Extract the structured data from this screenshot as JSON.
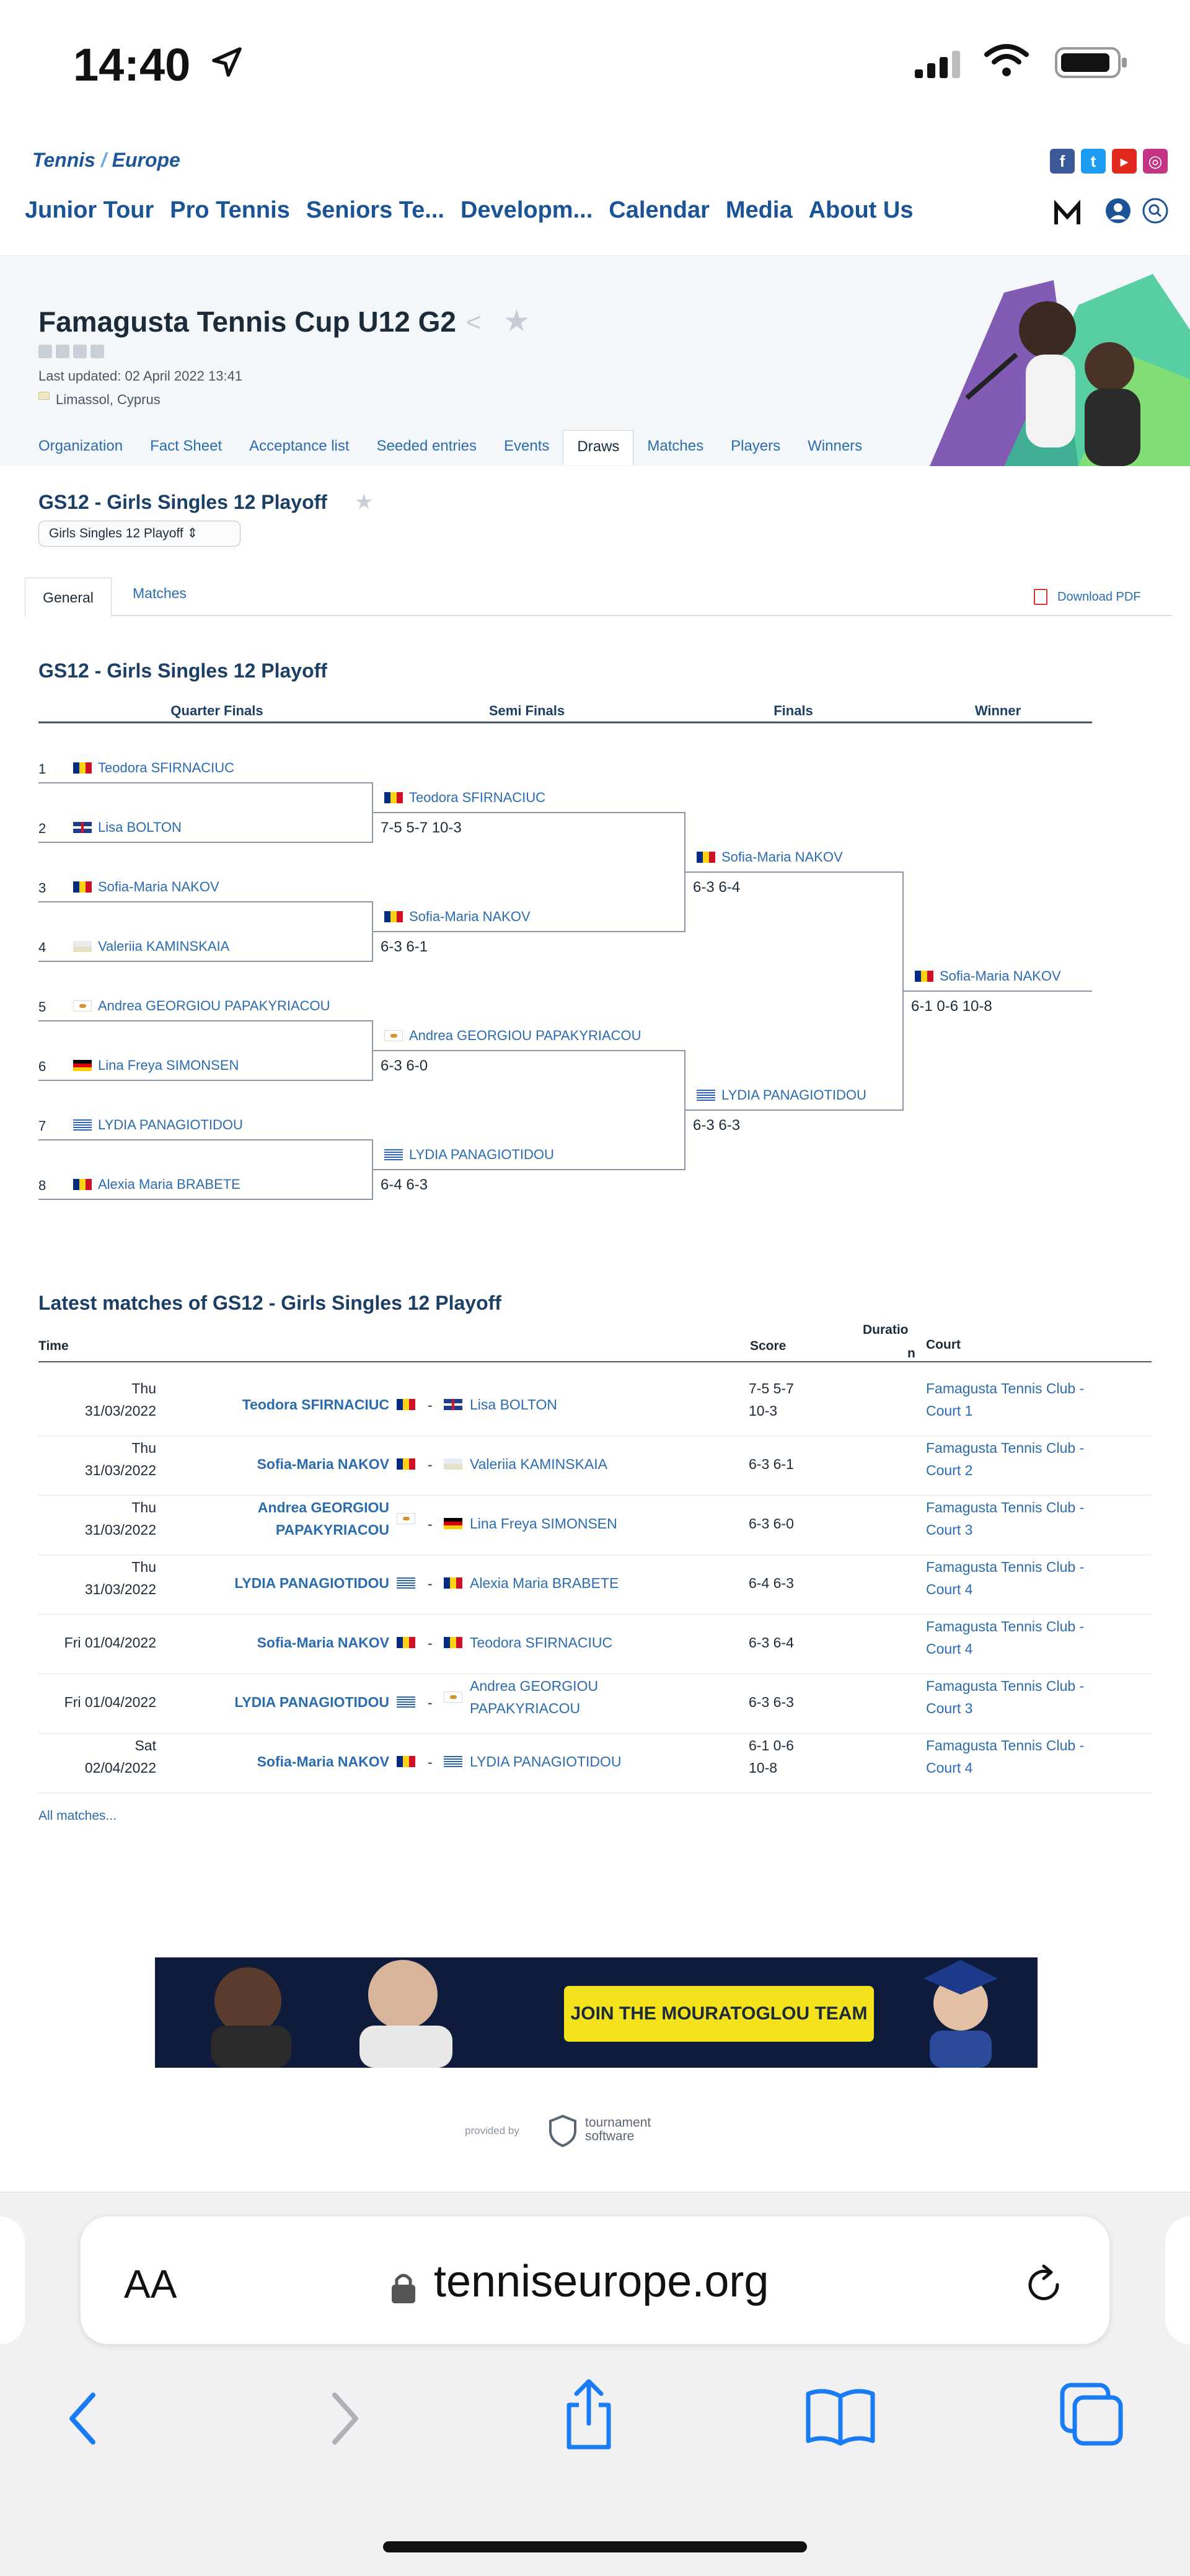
{
  "status_bar": {
    "time": "14:40"
  },
  "site": {
    "logo_part1": "Tennis",
    "logo_part2": "Europe",
    "nav": [
      "Junior Tour",
      "Pro Tennis",
      "Seniors Te...",
      "Developm...",
      "Calendar",
      "Media",
      "About Us"
    ],
    "social_icons": [
      "facebook-icon",
      "twitter-icon",
      "youtube-icon",
      "instagram-icon"
    ]
  },
  "tournament": {
    "title": "Famagusta Tennis Cup U12 G2",
    "updated": "Last updated: 02 April 2022 13:41",
    "location": "Limassol, Cyprus",
    "tabs": [
      "Organization",
      "Fact Sheet",
      "Acceptance list",
      "Seeded entries",
      "Events",
      "Draws",
      "Matches",
      "Players",
      "Winners"
    ],
    "active_tab": "Draws"
  },
  "draw": {
    "title": "GS12 - Girls Singles 12 Playoff",
    "select_value": "Girls Singles 12 Playoff",
    "subtabs": [
      "General",
      "Matches"
    ],
    "download": "Download PDF",
    "section_title": "GS12 - Girls Singles 12 Playoff",
    "rounds": [
      "Quarter Finals",
      "Semi Finals",
      "Finals",
      "Winner"
    ],
    "qf": [
      {
        "seed": "1",
        "name": "Teodora SFIRNACIUC",
        "flag": "ro"
      },
      {
        "seed": "2",
        "name": "Lisa BOLTON",
        "flag": "gb"
      },
      {
        "seed": "3",
        "name": "Sofia-Maria NAKOV",
        "flag": "ro"
      },
      {
        "seed": "4",
        "name": "Valeriia KAMINSKAIA",
        "flag": "ua"
      },
      {
        "seed": "5",
        "name": "Andrea GEORGIOU PAPAKYRIACOU",
        "flag": "cy"
      },
      {
        "seed": "6",
        "name": "Lina Freya SIMONSEN",
        "flag": "de"
      },
      {
        "seed": "7",
        "name": "LYDIA PANAGIOTIDOU",
        "flag": "gr"
      },
      {
        "seed": "8",
        "name": "Alexia Maria BRABETE",
        "flag": "ro"
      }
    ],
    "sf": [
      {
        "name": "Teodora SFIRNACIUC",
        "flag": "ro",
        "score": "7-5 5-7 10-3"
      },
      {
        "name": "Sofia-Maria NAKOV",
        "flag": "ro",
        "score": "6-3 6-1"
      },
      {
        "name": "Andrea GEORGIOU PAPAKYRIACOU",
        "flag": "cy",
        "score": "6-3 6-0"
      },
      {
        "name": "LYDIA PANAGIOTIDOU",
        "flag": "gr",
        "score": "6-4 6-3"
      }
    ],
    "f": [
      {
        "name": "Sofia-Maria NAKOV",
        "flag": "ro",
        "score": "6-3 6-4"
      },
      {
        "name": "LYDIA PANAGIOTIDOU",
        "flag": "gr",
        "score": "6-3 6-3"
      }
    ],
    "winner": {
      "name": "Sofia-Maria NAKOV",
      "flag": "ro",
      "score": "6-1 0-6 10-8"
    }
  },
  "latest": {
    "title": "Latest matches of GS12 - Girls Singles 12 Playoff",
    "headers": {
      "time": "Time",
      "score": "Score",
      "duration_a": "Duratio",
      "duration_b": "n",
      "court": "Court"
    },
    "rows": [
      {
        "time_a": "Thu",
        "time_b": "31/03/2022",
        "p1_a": "Teodora SFIRNACIUC",
        "p1_b": "",
        "p1_flag": "ro",
        "p2_a": "Lisa BOLTON",
        "p2_b": "",
        "p2_flag": "gb",
        "score_a": "7-5 5-7",
        "score_b": "10-3",
        "court_a": "Famagusta Tennis Club -",
        "court_b": "Court 1"
      },
      {
        "time_a": "Thu",
        "time_b": "31/03/2022",
        "p1_a": "Sofia-Maria NAKOV",
        "p1_b": "",
        "p1_flag": "ro",
        "p2_a": "Valeriia KAMINSKAIA",
        "p2_b": "",
        "p2_flag": "ua",
        "score_a": "6-3 6-1",
        "score_b": "",
        "court_a": "Famagusta Tennis Club -",
        "court_b": "Court 2"
      },
      {
        "time_a": "Thu",
        "time_b": "31/03/2022",
        "p1_a": "Andrea GEORGIOU",
        "p1_b": "PAPAKYRIACOU",
        "p1_flag": "cy",
        "p2_a": "Lina Freya SIMONSEN",
        "p2_b": "",
        "p2_flag": "de",
        "score_a": "6-3 6-0",
        "score_b": "",
        "court_a": "Famagusta Tennis Club -",
        "court_b": "Court 3"
      },
      {
        "time_a": "Thu",
        "time_b": "31/03/2022",
        "p1_a": "LYDIA PANAGIOTIDOU",
        "p1_b": "",
        "p1_flag": "gr",
        "p2_a": "Alexia Maria BRABETE",
        "p2_b": "",
        "p2_flag": "ro",
        "score_a": "6-4 6-3",
        "score_b": "",
        "court_a": "Famagusta Tennis Club -",
        "court_b": "Court 4"
      },
      {
        "time_a": "Fri 01/04/2022",
        "time_b": "",
        "p1_a": "Sofia-Maria NAKOV",
        "p1_b": "",
        "p1_flag": "ro",
        "p2_a": "Teodora SFIRNACIUC",
        "p2_b": "",
        "p2_flag": "ro",
        "score_a": "6-3 6-4",
        "score_b": "",
        "court_a": "Famagusta Tennis Club -",
        "court_b": "Court 4"
      },
      {
        "time_a": "Fri 01/04/2022",
        "time_b": "",
        "p1_a": "LYDIA PANAGIOTIDOU",
        "p1_b": "",
        "p1_flag": "gr",
        "p2_a": "Andrea GEORGIOU",
        "p2_b": "PAPAKYRIACOU",
        "p2_flag": "cy",
        "score_a": "6-3 6-3",
        "score_b": "",
        "court_a": "Famagusta Tennis Club -",
        "court_b": "Court 3"
      },
      {
        "time_a": "Sat",
        "time_b": "02/04/2022",
        "p1_a": "Sofia-Maria NAKOV",
        "p1_b": "",
        "p1_flag": "ro",
        "p2_a": "LYDIA PANAGIOTIDOU",
        "p2_b": "",
        "p2_flag": "gr",
        "score_a": "6-1 0-6",
        "score_b": "10-8",
        "court_a": "Famagusta Tennis Club -",
        "court_b": "Court 4"
      }
    ],
    "all_matches": "All matches..."
  },
  "ad": {
    "button": "JOIN THE MOURATOGLOU TEAM"
  },
  "footer": {
    "provided_by": "provided by",
    "software_a": "tournament",
    "software_b": "software"
  },
  "browser": {
    "aa": "AA",
    "url": "tenniseurope.org"
  },
  "colors": {
    "link": "#2b6cb0",
    "heading": "#1c3f66",
    "ad_button": "#f4e21c"
  }
}
